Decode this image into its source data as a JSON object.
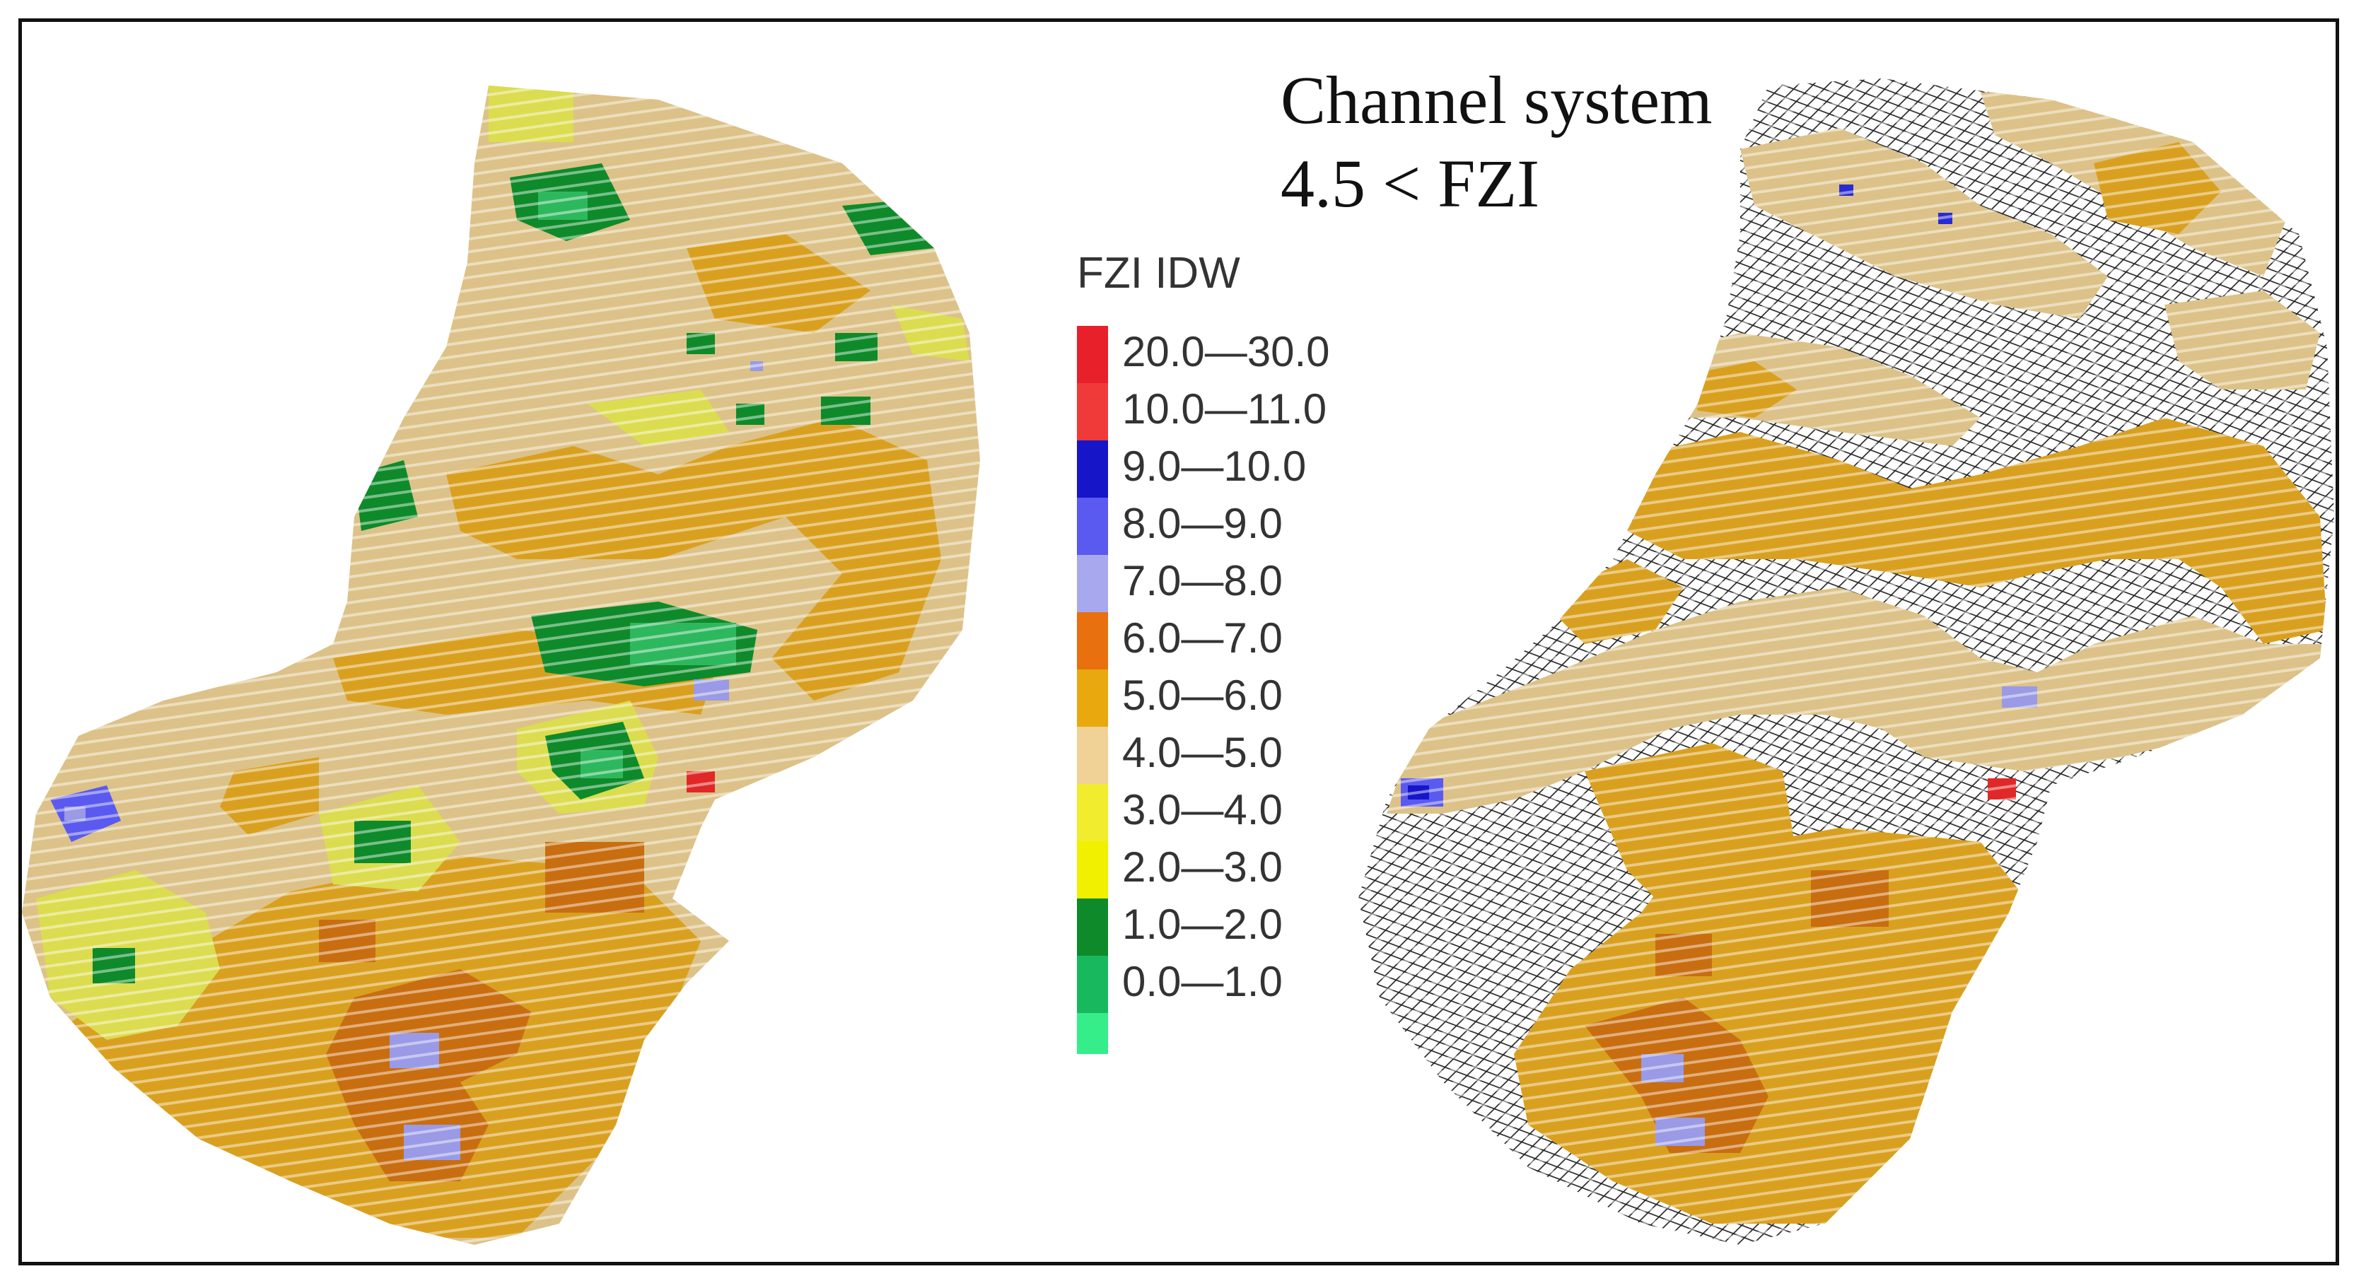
{
  "legend": {
    "title": "FZI IDW",
    "entries": [
      {
        "label": "20.0—30.0",
        "color": "#e8202a"
      },
      {
        "label": "10.0—11.0",
        "color": "#f03a3a"
      },
      {
        "label": "9.0—10.0",
        "color": "#1616c8"
      },
      {
        "label": "8.0—9.0",
        "color": "#5a5af0"
      },
      {
        "label": "7.0—8.0",
        "color": "#a8a8ee"
      },
      {
        "label": "6.0—7.0",
        "color": "#e8700e"
      },
      {
        "label": "5.0—6.0",
        "color": "#e8a80e"
      },
      {
        "label": "4.0—5.0",
        "color": "#f0d296"
      },
      {
        "label": "3.0—4.0",
        "color": "#f2ec2e"
      },
      {
        "label": "2.0—3.0",
        "color": "#f0f000"
      },
      {
        "label": "1.0—2.0",
        "color": "#0e8a2a"
      },
      {
        "label": "0.0—1.0",
        "color": "#17b85e"
      }
    ],
    "bottom_swatch_color": "#35ee8a"
  },
  "right_panel": {
    "title_line1": "Channel system",
    "title_line2": "4.5 < FZI"
  },
  "colors": {
    "base_tan": "#dcc288",
    "orange": "#d9a020",
    "dark_orange": "#c86e10",
    "yellow_green": "#dcdc50",
    "dark_green": "#0e8a2a",
    "mid_green": "#2eb85e",
    "lavender": "#9a9ae6",
    "blue": "#2a2ad2",
    "red": "#e02828",
    "mesh": "#222222"
  }
}
